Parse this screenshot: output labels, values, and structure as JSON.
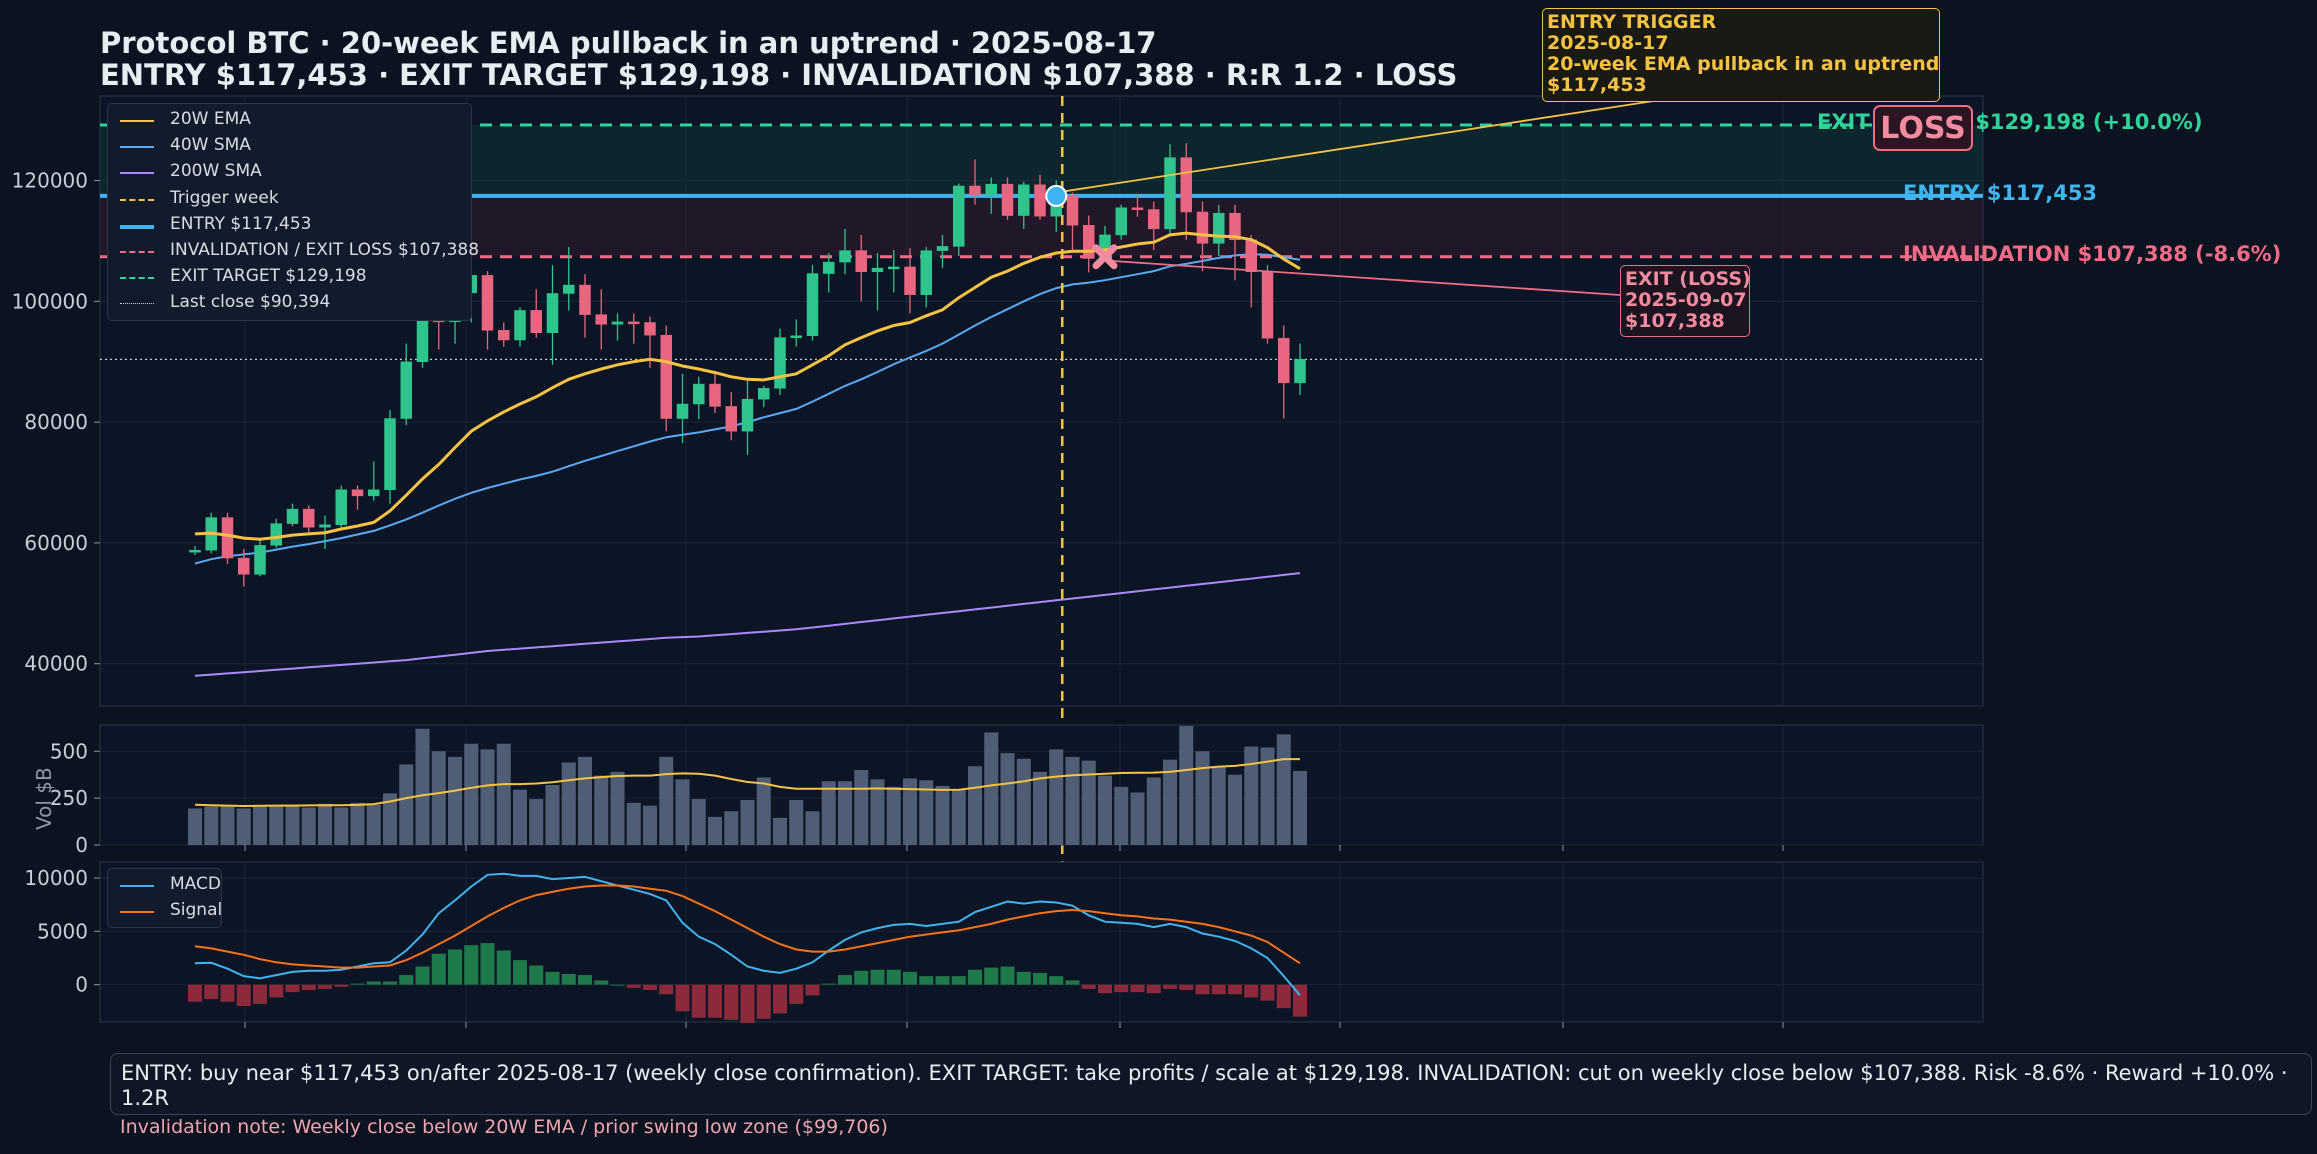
{
  "title": {
    "line1": "Protocol BTC · 20-week EMA pullback in an uptrend · 2025-08-17",
    "line2": "ENTRY $117,453   ·   EXIT TARGET $129,198   ·   INVALIDATION $107,388   ·   R:R 1.2   ·   LOSS"
  },
  "legend": {
    "items": [
      {
        "label": "20W EMA",
        "color": "#f5c242",
        "style": "solid"
      },
      {
        "label": "40W SMA",
        "color": "#5aa9f5",
        "style": "solid"
      },
      {
        "label": "200W SMA",
        "color": "#a78bfa",
        "style": "solid"
      },
      {
        "label": "Trigger week",
        "color": "#f5c242",
        "style": "dashed"
      },
      {
        "label": "ENTRY $117,453",
        "color": "#3fb4f0",
        "style": "thick"
      },
      {
        "label": "INVALIDATION / EXIT LOSS $107,388",
        "color": "#f06b85",
        "style": "dashed"
      },
      {
        "label": "EXIT TARGET $129,198",
        "color": "#2fd39a",
        "style": "dashed"
      },
      {
        "label": "Last close $90,394",
        "color": "#c8ced8",
        "style": "dotted"
      }
    ]
  },
  "macd_legend": {
    "items": [
      {
        "label": "MACD",
        "color": "#3fb4f0"
      },
      {
        "label": "Signal",
        "color": "#f97316"
      }
    ]
  },
  "levels": {
    "target_label": "EXIT TARGET  $129,198  (+10.0%)",
    "entry_label": "ENTRY  $117,453",
    "invalidation_label": "INVALIDATION  $107,388  (-8.6%)"
  },
  "loss_badge": "LOSS",
  "entry_annotation": [
    "ENTRY TRIGGER",
    "2025-08-17",
    "20-week EMA pullback in an uptrend",
    "$117,453"
  ],
  "exit_annotation": [
    "EXIT (LOSS)",
    "2025-09-07",
    "$107,388"
  ],
  "volume_axis_label": "Vol $B",
  "note": "ENTRY: buy near $117,453 on/after 2025-08-17 (weekly close confirmation).   EXIT TARGET: take profits / scale at $129,198.   INVALIDATION: cut on weekly close below $107,388.   Risk -8.6% · Reward +10.0% · 1.2R",
  "invalidation_note": "Invalidation note: Weekly close below 20W EMA / prior swing low zone ($99,706)",
  "colors": {
    "bull": "#2fc48c",
    "bear": "#e8667f",
    "background": "#0b1220",
    "panel": "#0c1526"
  },
  "chart_data": [
    {
      "type": "candlestick",
      "title": "Protocol BTC · 20-week EMA pullback in an uptrend · 2025-08-17",
      "ylim": [
        33000,
        134000
      ],
      "yticks": [
        40000,
        60000,
        80000,
        100000,
        120000
      ],
      "grid": true,
      "legend_position": "top-left",
      "entry": 117453,
      "target": 129198,
      "invalidation": 107388,
      "last_close": 90394,
      "trigger_index": 53,
      "exit_index": 56,
      "candles": [
        [
          58500,
          59500,
          58000,
          58800
        ],
        [
          58800,
          65000,
          58300,
          64200
        ],
        [
          64200,
          65000,
          56500,
          57500
        ],
        [
          57500,
          59000,
          52800,
          54800
        ],
        [
          54800,
          60500,
          54500,
          59600
        ],
        [
          59600,
          64000,
          59200,
          63200
        ],
        [
          63200,
          66500,
          62800,
          65600
        ],
        [
          65600,
          66200,
          61500,
          62600
        ],
        [
          62600,
          64500,
          59000,
          63000
        ],
        [
          63000,
          69500,
          62500,
          68800
        ],
        [
          68800,
          69500,
          65500,
          67800
        ],
        [
          67800,
          73500,
          67000,
          68800
        ],
        [
          68800,
          82000,
          66500,
          80600
        ],
        [
          80600,
          93000,
          79500,
          90000
        ],
        [
          90000,
          100000,
          89000,
          98400
        ],
        [
          98400,
          99200,
          92000,
          96600
        ],
        [
          96600,
          104000,
          93000,
          101400
        ],
        [
          101400,
          106000,
          96500,
          104300
        ],
        [
          104300,
          105000,
          92000,
          95200
        ],
        [
          95200,
          96500,
          92500,
          93600
        ],
        [
          93600,
          99000,
          92500,
          98500
        ],
        [
          98500,
          102000,
          94000,
          94800
        ],
        [
          94800,
          106000,
          89500,
          101300
        ],
        [
          101300,
          109000,
          98500,
          102700
        ],
        [
          102700,
          104500,
          94000,
          97800
        ],
        [
          97800,
          102000,
          92000,
          96200
        ],
        [
          96200,
          98000,
          93500,
          96600
        ],
        [
          96600,
          98000,
          93000,
          96500
        ],
        [
          96500,
          97500,
          89000,
          94400
        ],
        [
          94400,
          96000,
          78500,
          80600
        ],
        [
          80600,
          88000,
          76500,
          83000
        ],
        [
          83000,
          87500,
          80500,
          86300
        ],
        [
          86300,
          88500,
          81500,
          82600
        ],
        [
          82600,
          85000,
          77000,
          78500
        ],
        [
          78500,
          87000,
          74600,
          83800
        ],
        [
          83800,
          86000,
          82500,
          85600
        ],
        [
          85600,
          95500,
          84500,
          94000
        ],
        [
          94000,
          97000,
          92500,
          94300
        ],
        [
          94300,
          106000,
          93500,
          104600
        ],
        [
          104600,
          108000,
          101500,
          106500
        ],
        [
          106500,
          112000,
          104500,
          108400
        ],
        [
          108400,
          111000,
          100000,
          104900
        ],
        [
          104900,
          108000,
          98500,
          105500
        ],
        [
          105500,
          108500,
          101500,
          105700
        ],
        [
          105700,
          108800,
          98000,
          101100
        ],
        [
          101100,
          109000,
          99000,
          108400
        ],
        [
          108400,
          111000,
          105500,
          109100
        ],
        [
          109100,
          119500,
          107500,
          119100
        ],
        [
          119100,
          123500,
          116000,
          117600
        ],
        [
          117600,
          120500,
          114500,
          119400
        ],
        [
          119400,
          120500,
          113500,
          114200
        ],
        [
          114200,
          119800,
          112000,
          119300
        ],
        [
          119300,
          121000,
          113500,
          114100
        ],
        [
          114100,
          120000,
          111500,
          117453
        ],
        [
          117453,
          118000,
          108500,
          112600
        ],
        [
          112600,
          114200,
          104800,
          107100
        ],
        [
          107100,
          112500,
          107000,
          111000
        ],
        [
          111000,
          116000,
          110200,
          115500
        ],
        [
          115500,
          117800,
          114000,
          115200
        ],
        [
          115200,
          116500,
          108500,
          112000
        ],
        [
          112000,
          126000,
          111000,
          123800
        ],
        [
          123800,
          126200,
          110200,
          114800
        ],
        [
          114800,
          116500,
          105000,
          109600
        ],
        [
          109600,
          116000,
          107500,
          114600
        ],
        [
          114600,
          116000,
          103500,
          110200
        ],
        [
          110200,
          111000,
          99000,
          104900
        ],
        [
          104900,
          106000,
          93000,
          93900
        ],
        [
          93900,
          96000,
          80600,
          86500
        ],
        [
          86500,
          93000,
          84500,
          90394
        ]
      ],
      "ema20": [
        61500,
        61600,
        61300,
        60800,
        60600,
        60900,
        61300,
        61500,
        61700,
        62300,
        62800,
        63400,
        65300,
        67900,
        70600,
        73000,
        75800,
        78500,
        80200,
        81700,
        83000,
        84200,
        85700,
        87100,
        88000,
        88800,
        89500,
        90000,
        90400,
        90000,
        89300,
        88800,
        88200,
        87500,
        87100,
        87000,
        87500,
        88000,
        89500,
        91000,
        92800,
        94000,
        95100,
        96000,
        96500,
        97600,
        98600,
        100600,
        102300,
        104000,
        105000,
        106300,
        107300,
        108000,
        108300,
        108300,
        108500,
        109000,
        109500,
        109800,
        111000,
        111300,
        111000,
        110800,
        110700,
        110200,
        108900,
        107000,
        105400
      ],
      "sma40": [
        56600,
        57300,
        57800,
        58100,
        58400,
        58900,
        59400,
        59800,
        60300,
        60800,
        61400,
        62000,
        62900,
        63900,
        65000,
        66200,
        67300,
        68300,
        69100,
        69800,
        70500,
        71100,
        71800,
        72700,
        73600,
        74400,
        75200,
        76000,
        76800,
        77500,
        77900,
        78300,
        78800,
        79300,
        80000,
        80800,
        81500,
        82200,
        83400,
        84700,
        86000,
        87100,
        88300,
        89600,
        90700,
        91800,
        93000,
        94500,
        96000,
        97400,
        98700,
        100000,
        101200,
        102200,
        102800,
        103100,
        103500,
        104000,
        104500,
        105000,
        105800,
        106200,
        106700,
        107200,
        107600,
        107800,
        107700,
        107300,
        106900
      ],
      "sma200": [
        38000,
        38200,
        38400,
        38600,
        38800,
        39000,
        39200,
        39400,
        39600,
        39800,
        40000,
        40200,
        40400,
        40600,
        40900,
        41200,
        41500,
        41800,
        42100,
        42300,
        42500,
        42700,
        42900,
        43100,
        43300,
        43500,
        43700,
        43900,
        44100,
        44300,
        44400,
        44500,
        44700,
        44900,
        45100,
        45300,
        45500,
        45700,
        46000,
        46300,
        46600,
        46900,
        47200,
        47500,
        47800,
        48100,
        48400,
        48700,
        49000,
        49300,
        49600,
        49900,
        50200,
        50500,
        50800,
        51100,
        51400,
        51700,
        52000,
        52300,
        52600,
        52900,
        53200,
        53500,
        53800,
        54100,
        54400,
        54700,
        55000
      ]
    },
    {
      "type": "bar",
      "ylabel": "Vol $B",
      "ylim": [
        0,
        640
      ],
      "yticks": [
        0,
        250,
        500
      ],
      "volume": [
        195,
        205,
        205,
        195,
        210,
        205,
        215,
        200,
        220,
        200,
        225,
        215,
        275,
        430,
        620,
        500,
        470,
        540,
        510,
        540,
        295,
        245,
        320,
        440,
        470,
        370,
        390,
        225,
        210,
        470,
        350,
        245,
        150,
        180,
        240,
        360,
        145,
        240,
        180,
        340,
        340,
        400,
        350,
        310,
        355,
        345,
        315,
        295,
        420,
        600,
        490,
        460,
        390,
        510,
        470,
        450,
        370,
        310,
        280,
        360,
        455,
        635,
        500,
        420,
        375,
        525,
        520,
        590,
        395
      ],
      "volume_ma": [
        215,
        212,
        210,
        208,
        209,
        210,
        210,
        211,
        212,
        212,
        214,
        218,
        232,
        250,
        265,
        277,
        290,
        305,
        318,
        325,
        325,
        328,
        335,
        345,
        355,
        362,
        368,
        370,
        370,
        378,
        382,
        380,
        370,
        352,
        336,
        328,
        310,
        300,
        300,
        300,
        300,
        300,
        302,
        300,
        298,
        296,
        294,
        295,
        305,
        318,
        328,
        340,
        355,
        365,
        372,
        376,
        380,
        384,
        385,
        386,
        390,
        400,
        410,
        418,
        422,
        432,
        445,
        458,
        458
      ]
    },
    {
      "type": "bar",
      "ylim": [
        -3500,
        11500
      ],
      "yticks": [
        0,
        5000,
        10000
      ],
      "macd": [
        2000,
        2050,
        1500,
        800,
        600,
        900,
        1200,
        1300,
        1300,
        1400,
        1700,
        2000,
        2100,
        3200,
        4700,
        6700,
        7900,
        9200,
        10300,
        10400,
        10200,
        10200,
        9900,
        10000,
        10100,
        9700,
        9300,
        8900,
        8500,
        7900,
        5800,
        4500,
        3800,
        2800,
        1700,
        1300,
        1100,
        1500,
        2100,
        3200,
        4200,
        4900,
        5300,
        5600,
        5700,
        5500,
        5700,
        5900,
        6800,
        7300,
        7800,
        7600,
        7800,
        7700,
        7400,
        6500,
        5900,
        5800,
        5700,
        5400,
        5700,
        5400,
        4800,
        4500,
        4100,
        3400,
        2500,
        800,
        -1000
      ],
      "signal": [
        3600,
        3400,
        3100,
        2800,
        2400,
        2100,
        1900,
        1800,
        1700,
        1600,
        1600,
        1700,
        1800,
        2300,
        3000,
        3800,
        4600,
        5500,
        6400,
        7200,
        7900,
        8400,
        8700,
        9000,
        9200,
        9300,
        9300,
        9200,
        9000,
        8800,
        8300,
        7600,
        6900,
        6100,
        5300,
        4500,
        3800,
        3300,
        3100,
        3100,
        3300,
        3600,
        3900,
        4200,
        4500,
        4700,
        4900,
        5100,
        5400,
        5700,
        6100,
        6400,
        6700,
        6900,
        7000,
        6900,
        6700,
        6500,
        6400,
        6200,
        6100,
        5900,
        5700,
        5400,
        5000,
        4600,
        4000,
        3000,
        2000
      ]
    }
  ]
}
